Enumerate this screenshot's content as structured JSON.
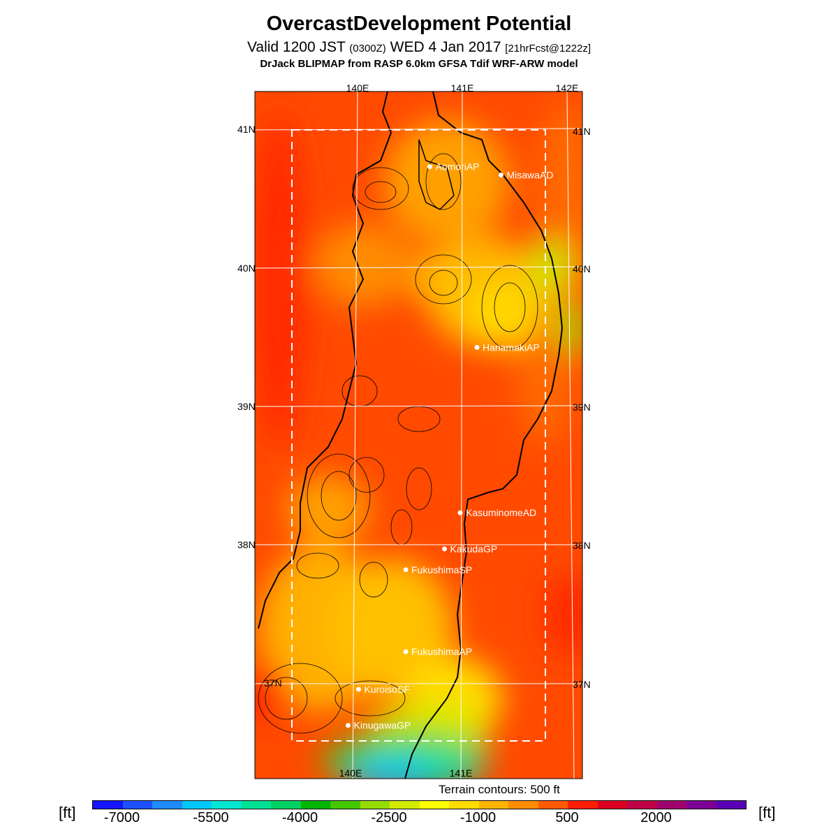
{
  "title": "OvercastDevelopment Potential",
  "subtitle": {
    "valid": "Valid 1200 JST",
    "utc": "(0300Z)",
    "date": "WED 4 Jan 2017",
    "forecast": "[21hrFcst@1222z]"
  },
  "model_line": "DrJack BLIPMAP from RASP 6.0km GFSA Tdif WRF-ARW model",
  "map": {
    "lon_labels_top": [
      "140E",
      "141E",
      "142E"
    ],
    "lon_labels_bottom": [
      "140E",
      "141E"
    ],
    "lat_labels": [
      "41N",
      "40N",
      "39N",
      "38N",
      "37N"
    ],
    "stations": [
      {
        "name": "AomoriAP",
        "lon": 140.69,
        "lat": 40.73
      },
      {
        "name": "MisawaAD",
        "lon": 141.37,
        "lat": 40.67
      },
      {
        "name": "HanamakiAP",
        "lon": 141.14,
        "lat": 39.43
      },
      {
        "name": "KasuminomeAD",
        "lon": 140.98,
        "lat": 38.24
      },
      {
        "name": "KakudaGP",
        "lon": 140.83,
        "lat": 37.98
      },
      {
        "name": "FukushimaSP",
        "lon": 140.46,
        "lat": 37.83
      },
      {
        "name": "FukushimaAP",
        "lon": 140.46,
        "lat": 37.24
      },
      {
        "name": "KuroisoSF",
        "lon": 140.01,
        "lat": 36.97
      },
      {
        "name": "KinugawaGP",
        "lon": 139.91,
        "lat": 36.71
      }
    ],
    "terrain_note": "Terrain contours: 500 ft"
  },
  "colorbar": {
    "unit": "[ft]",
    "tick_labels": [
      "-7000",
      "-5500",
      "-4000",
      "-2500",
      "-1000",
      "500",
      "2000"
    ],
    "tick_values": [
      -7000,
      -5500,
      -4000,
      -2500,
      -1000,
      500,
      2000
    ],
    "colors": [
      "#1414ff",
      "#1e50ff",
      "#1e8cff",
      "#00c8ff",
      "#00e6d2",
      "#00e196",
      "#00d264",
      "#00b400",
      "#46c800",
      "#96dc00",
      "#d2eb00",
      "#ffff00",
      "#ffdc00",
      "#ffb400",
      "#ff8c00",
      "#ff5a00",
      "#ff1e00",
      "#dc0023",
      "#be0046",
      "#a0006e",
      "#7d0096",
      "#5a00b4"
    ]
  }
}
